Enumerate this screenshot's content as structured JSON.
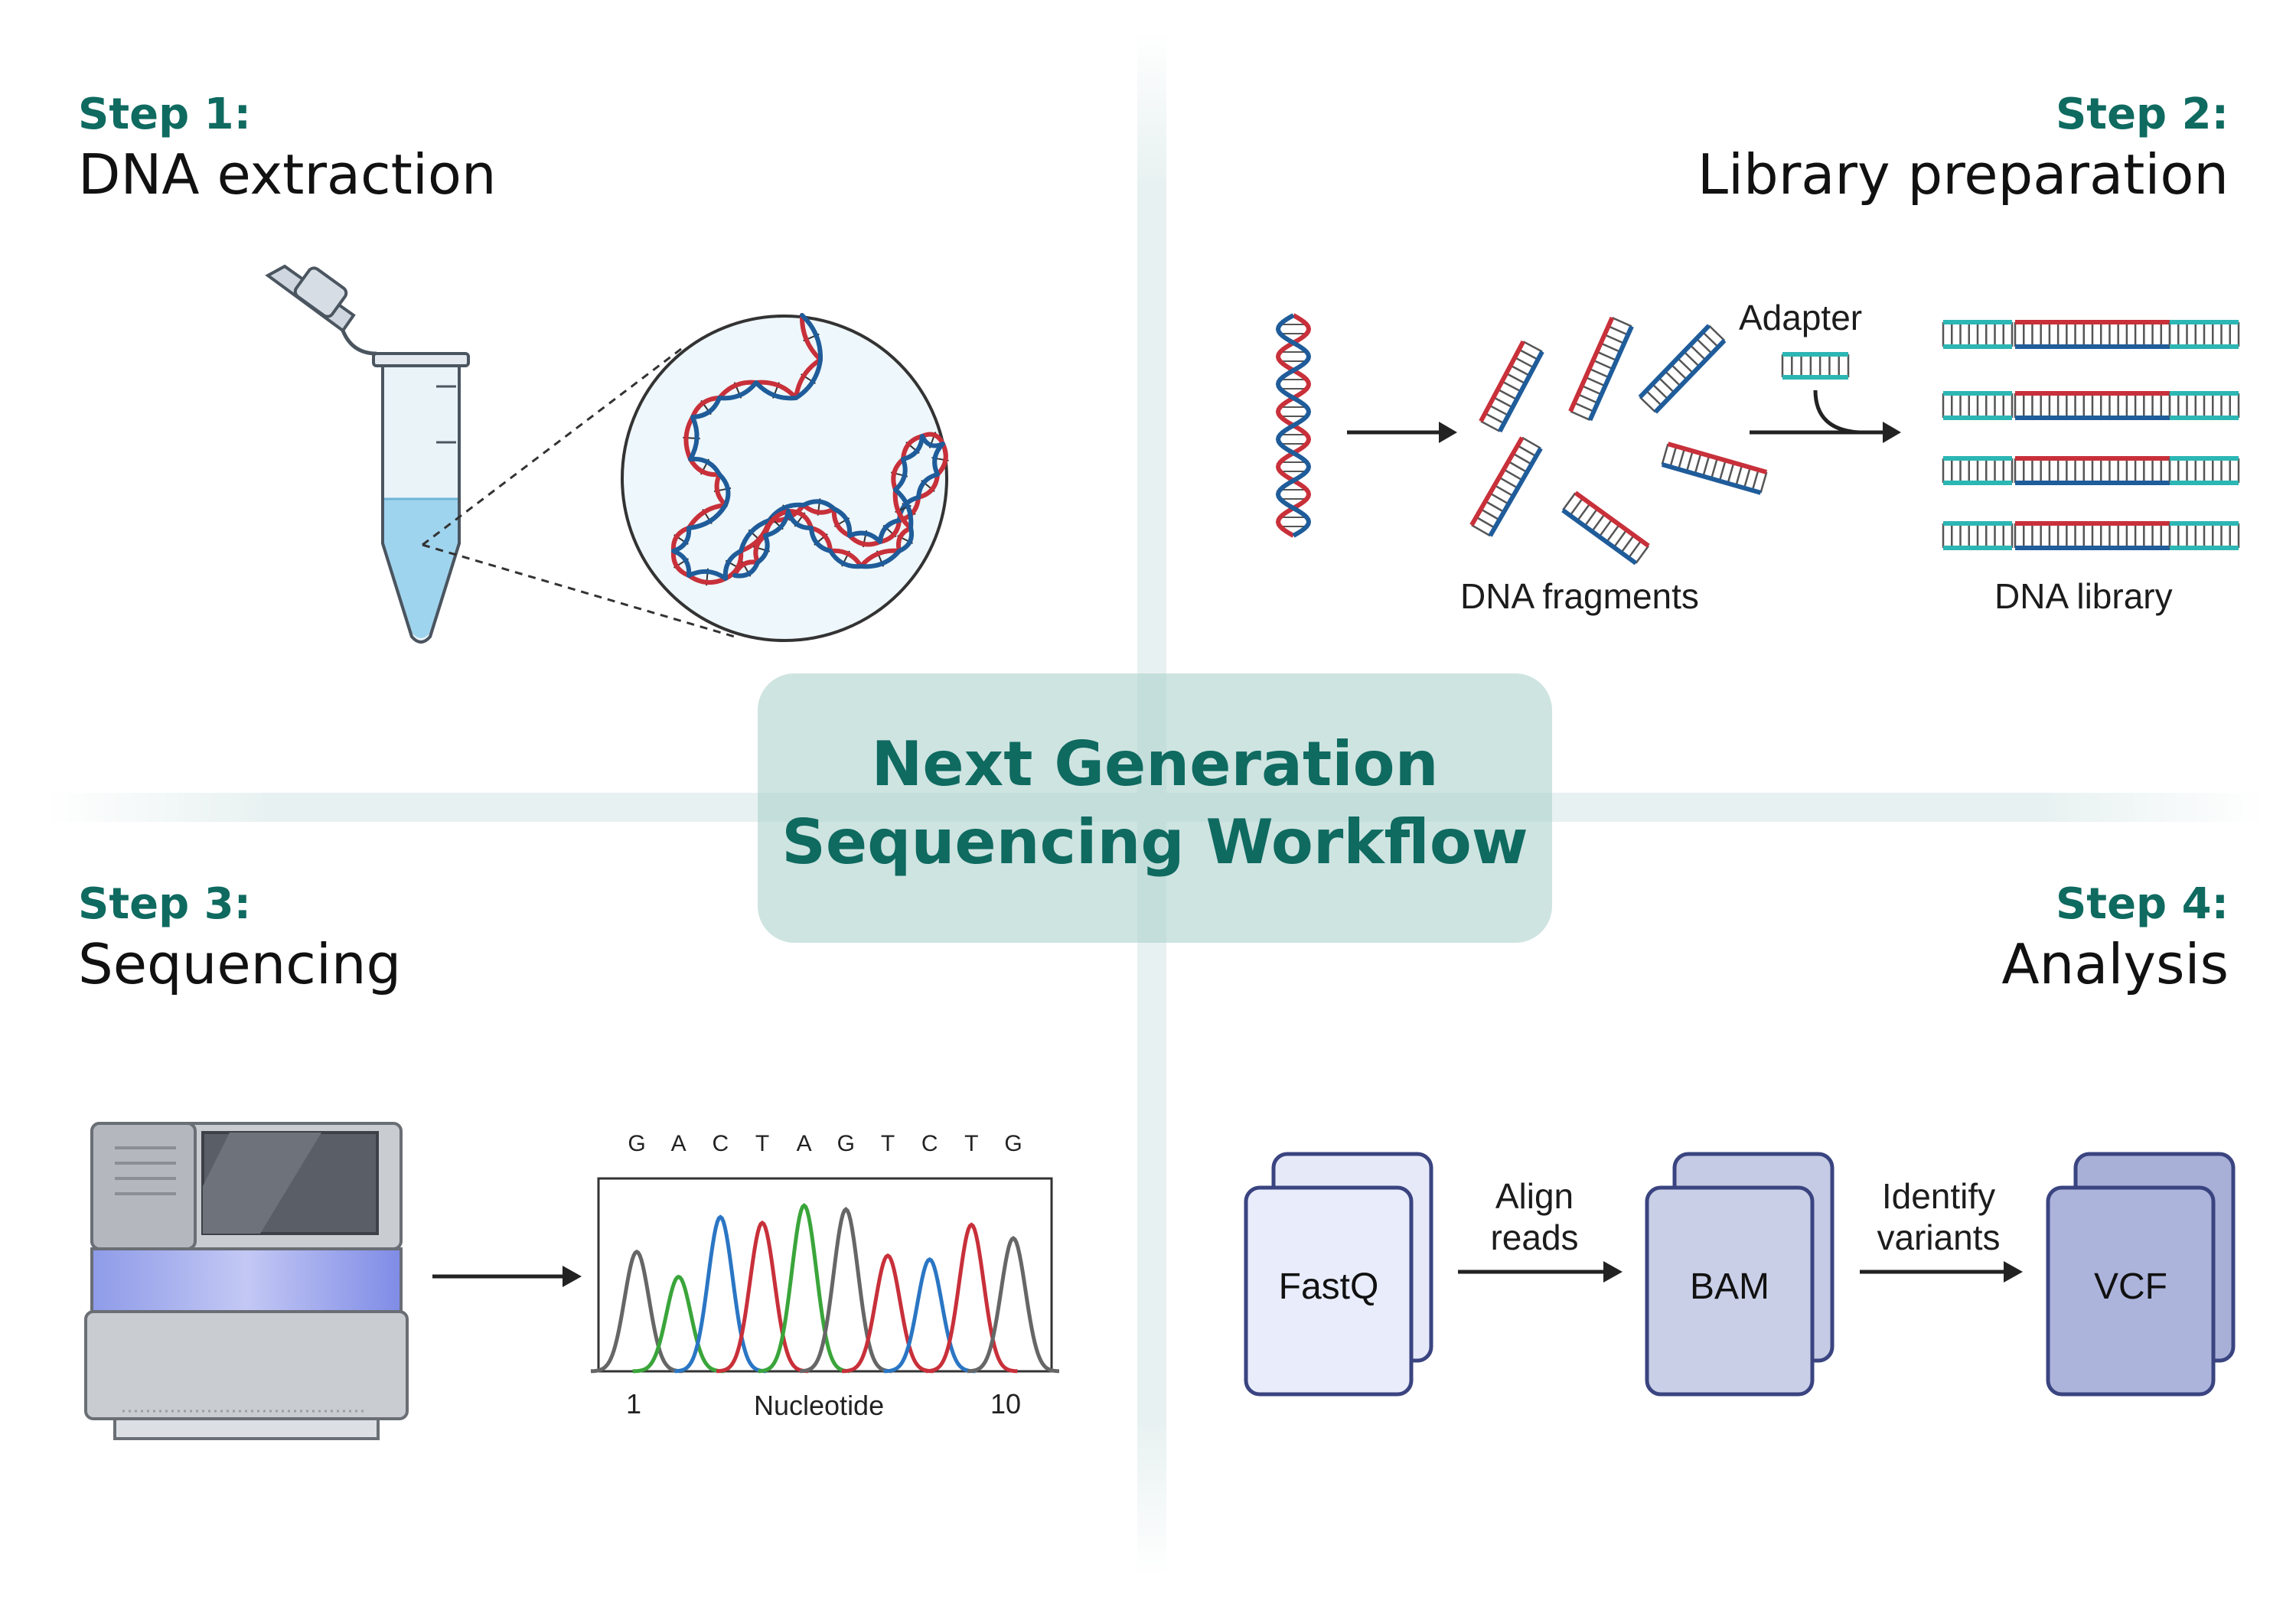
{
  "title": {
    "line1": "Next Generation",
    "line2": "Sequencing Workflow"
  },
  "steps": [
    {
      "label": "Step 1:",
      "title": "DNA extraction"
    },
    {
      "label": "Step 2:",
      "title": "Library preparation"
    },
    {
      "label": "Step 3:",
      "title": "Sequencing"
    },
    {
      "label": "Step 4:",
      "title": "Analysis"
    }
  ],
  "step2": {
    "adapter": "Adapter",
    "fragments": "DNA fragments",
    "library": "DNA library"
  },
  "step3": {
    "bases": [
      "G",
      "A",
      "C",
      "T",
      "A",
      "G",
      "T",
      "C",
      "T",
      "G"
    ],
    "axis_start": "1",
    "axis_end": "10",
    "axis_label": "Nucleotide"
  },
  "step4": {
    "files": [
      "FastQ",
      "BAM",
      "VCF"
    ],
    "arrow1": {
      "line1": "Align",
      "line2": "reads"
    },
    "arrow2": {
      "line1": "Identify",
      "line2": "variants"
    }
  },
  "colors": {
    "accent": "#0f6a60",
    "dna_red": "#c8303a",
    "dna_blue": "#1f5c9a",
    "adapter_teal": "#2cb6b4",
    "peak_gray": "#666666",
    "peak_green": "#3aa53a",
    "peak_blue": "#2a76c4",
    "peak_red": "#c8303a"
  },
  "peak_colors": [
    "gray",
    "green",
    "blue",
    "red",
    "green",
    "gray",
    "red",
    "blue",
    "red",
    "gray"
  ],
  "peak_heights": [
    0.62,
    0.49,
    0.8,
    0.77,
    0.86,
    0.84,
    0.6,
    0.58,
    0.76,
    0.69
  ]
}
